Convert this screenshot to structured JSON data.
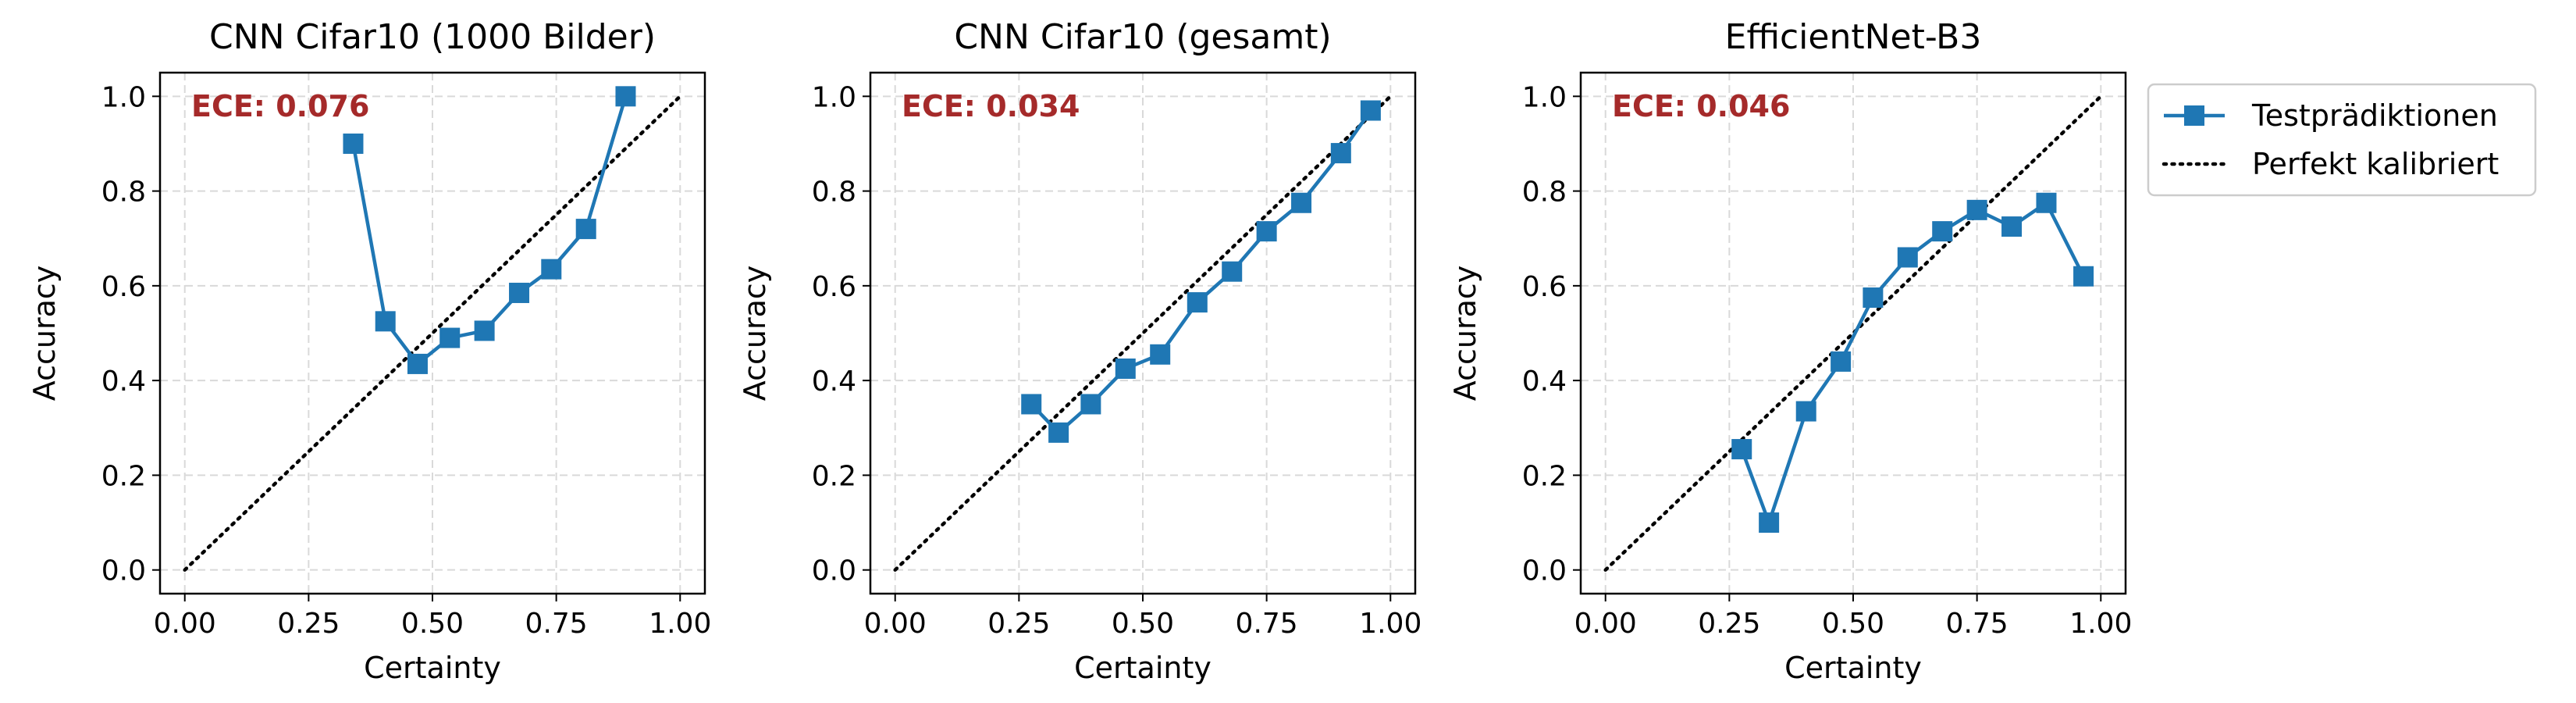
{
  "chart_data": [
    {
      "type": "line",
      "title": "CNN Cifar10 (1000 Bilder)",
      "xlabel": "Certainty",
      "ylabel": "Accuracy",
      "xlim": [
        -0.05,
        1.05
      ],
      "ylim": [
        -0.05,
        1.05
      ],
      "xticks": [
        "0.00",
        "0.25",
        "0.50",
        "0.75",
        "1.00"
      ],
      "yticks": [
        "0.0",
        "0.2",
        "0.4",
        "0.6",
        "0.8",
        "1.0"
      ],
      "grid": true,
      "annotation": "ECE: 0.076",
      "series": [
        {
          "name": "Testprädiktionen",
          "x": [
            0.34,
            0.405,
            0.47,
            0.535,
            0.605,
            0.675,
            0.74,
            0.81,
            0.89
          ],
          "y": [
            0.9,
            0.525,
            0.435,
            0.49,
            0.505,
            0.585,
            0.635,
            0.72,
            1.0
          ]
        },
        {
          "name": "Perfekt kalibriert",
          "x": [
            0,
            1
          ],
          "y": [
            0,
            1
          ]
        }
      ]
    },
    {
      "type": "line",
      "title": "CNN Cifar10 (gesamt)",
      "xlabel": "Certainty",
      "ylabel": "Accuracy",
      "xlim": [
        -0.05,
        1.05
      ],
      "ylim": [
        -0.05,
        1.05
      ],
      "xticks": [
        "0.00",
        "0.25",
        "0.50",
        "0.75",
        "1.00"
      ],
      "yticks": [
        "0.0",
        "0.2",
        "0.4",
        "0.6",
        "0.8",
        "1.0"
      ],
      "grid": true,
      "annotation": "ECE: 0.034",
      "series": [
        {
          "name": "Testprädiktionen",
          "x": [
            0.275,
            0.33,
            0.395,
            0.465,
            0.535,
            0.61,
            0.68,
            0.75,
            0.82,
            0.9,
            0.96
          ],
          "y": [
            0.35,
            0.29,
            0.35,
            0.425,
            0.455,
            0.565,
            0.63,
            0.715,
            0.775,
            0.88,
            0.97
          ]
        },
        {
          "name": "Perfekt kalibriert",
          "x": [
            0,
            1
          ],
          "y": [
            0,
            1
          ]
        }
      ]
    },
    {
      "type": "line",
      "title": "EfficientNet-B3",
      "xlabel": "Certainty",
      "ylabel": "Accuracy",
      "xlim": [
        -0.05,
        1.05
      ],
      "ylim": [
        -0.05,
        1.05
      ],
      "xticks": [
        "0.00",
        "0.25",
        "0.50",
        "0.75",
        "1.00"
      ],
      "yticks": [
        "0.0",
        "0.2",
        "0.4",
        "0.6",
        "0.8",
        "1.0"
      ],
      "grid": true,
      "annotation": "ECE: 0.046",
      "series": [
        {
          "name": "Testprädiktionen",
          "x": [
            0.275,
            0.33,
            0.405,
            0.475,
            0.54,
            0.61,
            0.68,
            0.75,
            0.82,
            0.89,
            0.965
          ],
          "y": [
            0.255,
            0.1,
            0.335,
            0.44,
            0.575,
            0.66,
            0.715,
            0.76,
            0.725,
            0.775,
            0.62
          ]
        },
        {
          "name": "Perfekt kalibriert",
          "x": [
            0,
            1
          ],
          "y": [
            0,
            1
          ]
        }
      ]
    }
  ],
  "legend": {
    "placement": "right, outside top-right",
    "items": [
      "Testprädiktionen",
      "Perfekt kalibriert"
    ]
  },
  "colors": {
    "series": "#1f77b4",
    "diagonal": "#000000",
    "annotation": "#a52a2a",
    "grid": "#d9d9d9"
  }
}
